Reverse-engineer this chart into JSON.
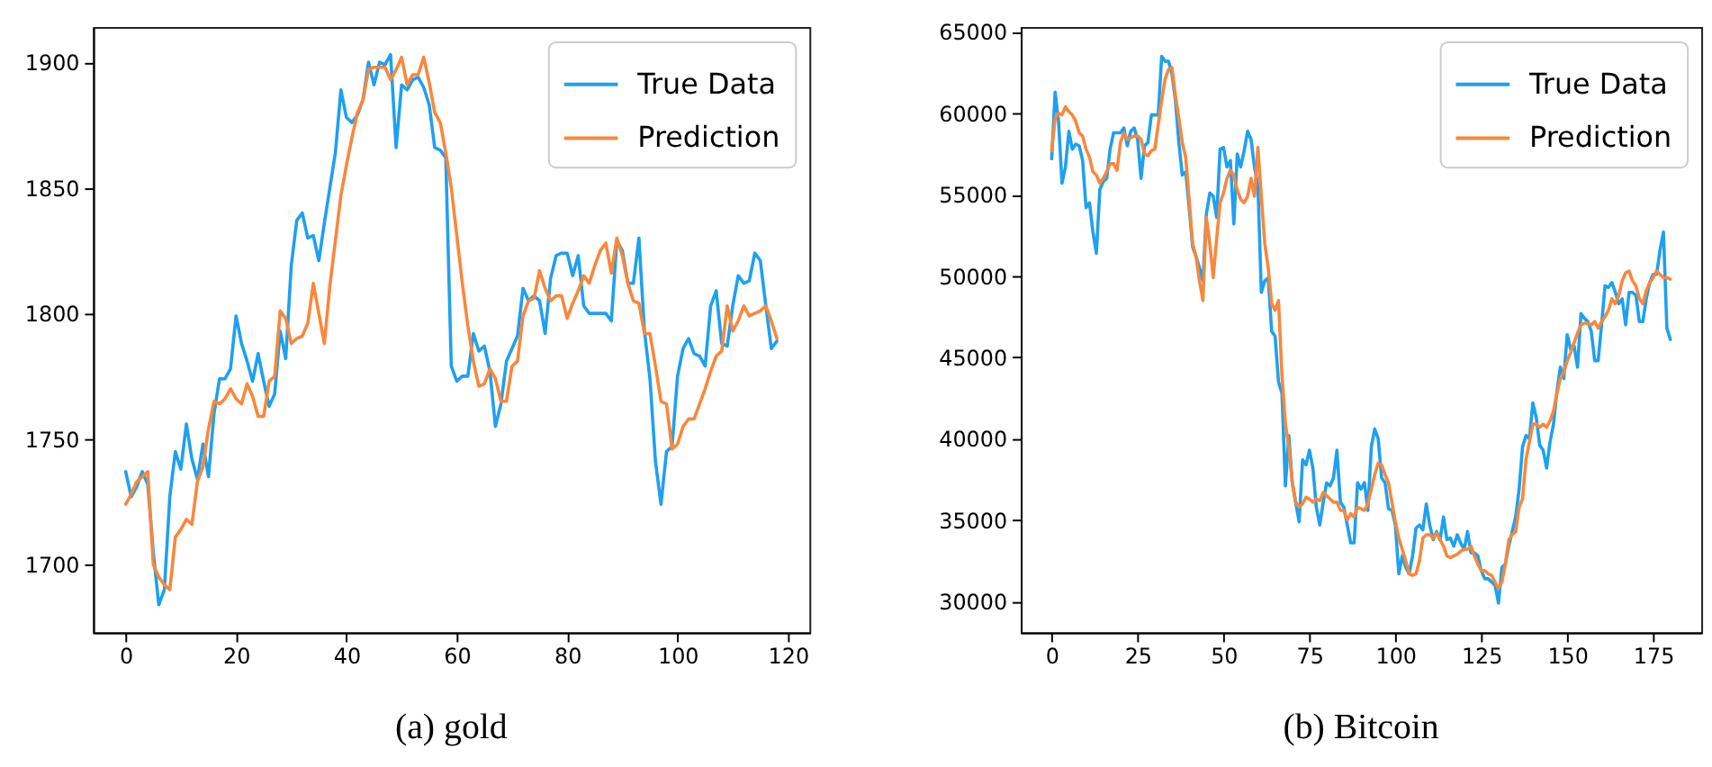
{
  "chart_data": [
    {
      "type": "line",
      "title": "(a) gold",
      "legend": "top right",
      "line_style": "solid",
      "xlim": [
        -5.9,
        123.9
      ],
      "xticks": [
        0,
        20,
        40,
        60,
        80,
        100,
        120
      ],
      "ylim": [
        1673,
        1914
      ],
      "yticks": [
        1700,
        1750,
        1800,
        1850,
        1900
      ],
      "x": [
        0,
        1,
        2,
        3,
        4,
        5,
        6,
        7,
        8,
        9,
        10,
        11,
        12,
        13,
        14,
        15,
        16,
        17,
        18,
        19,
        20,
        21,
        22,
        23,
        24,
        25,
        26,
        27,
        28,
        29,
        30,
        31,
        32,
        33,
        34,
        35,
        36,
        37,
        38,
        39,
        40,
        41,
        42,
        43,
        44,
        45,
        46,
        47,
        48,
        49,
        50,
        51,
        52,
        53,
        54,
        55,
        56,
        57,
        58,
        59,
        60,
        61,
        62,
        63,
        64,
        65,
        66,
        67,
        68,
        69,
        70,
        71,
        72,
        73,
        74,
        75,
        76,
        77,
        78,
        79,
        80,
        81,
        82,
        83,
        84,
        85,
        86,
        87,
        88,
        89,
        90,
        91,
        92,
        93,
        94,
        95,
        96,
        97,
        98,
        99,
        100,
        101,
        102,
        103,
        104,
        105,
        106,
        107,
        108,
        109,
        110,
        111,
        112,
        113,
        114,
        115,
        116,
        117,
        118
      ],
      "series": [
        {
          "name": "True Data",
          "color": "#1ea0f0",
          "values": [
            1737,
            1727,
            1731,
            1737,
            1732,
            1705,
            1684,
            1690,
            1727,
            1745,
            1738,
            1756,
            1742,
            1734,
            1748,
            1735,
            1760,
            1774,
            1774,
            1778,
            1799,
            1788,
            1781,
            1773,
            1784,
            1773,
            1763,
            1768,
            1793,
            1782,
            1819,
            1837,
            1840,
            1830,
            1831,
            1821,
            1836,
            1850,
            1864,
            1889,
            1878,
            1876,
            1879,
            1885,
            1900,
            1891,
            1900,
            1899,
            1903,
            1866,
            1891,
            1889,
            1893,
            1894,
            1890,
            1883,
            1866,
            1865,
            1862,
            1779,
            1773,
            1775,
            1775,
            1792,
            1785,
            1787,
            1777,
            1755,
            1764,
            1781,
            1786,
            1791,
            1810,
            1805,
            1807,
            1805,
            1792,
            1814,
            1823,
            1824,
            1824,
            1815,
            1823,
            1803,
            1800,
            1800,
            1800,
            1800,
            1797,
            1829,
            1825,
            1812,
            1812,
            1830,
            1793,
            1774,
            1741,
            1724,
            1745,
            1747,
            1775,
            1786,
            1790,
            1784,
            1783,
            1779,
            1803,
            1809,
            1788,
            1787,
            1803,
            1815,
            1812,
            1813,
            1824,
            1821,
            1803,
            1786,
            1789
          ]
        },
        {
          "name": "Prediction",
          "color": "#f9873c",
          "values": [
            1724,
            1728,
            1733,
            1735,
            1737,
            1700,
            1695,
            1692,
            1690,
            1711,
            1714,
            1718,
            1716,
            1733,
            1739,
            1754,
            1765,
            1764,
            1766,
            1770,
            1766,
            1764,
            1772,
            1767,
            1759,
            1759,
            1773,
            1775,
            1801,
            1798,
            1788,
            1790,
            1791,
            1796,
            1812,
            1800,
            1788,
            1811,
            1829,
            1847,
            1859,
            1870,
            1880,
            1885,
            1897,
            1898,
            1898,
            1898,
            1893,
            1897,
            1902,
            1891,
            1895,
            1895,
            1902,
            1892,
            1880,
            1876,
            1864,
            1850,
            1831,
            1812,
            1795,
            1781,
            1771,
            1772,
            1778,
            1774,
            1765,
            1765,
            1779,
            1781,
            1799,
            1805,
            1806,
            1817,
            1810,
            1805,
            1807,
            1807,
            1798,
            1804,
            1809,
            1815,
            1812,
            1819,
            1825,
            1828,
            1816,
            1830,
            1823,
            1812,
            1805,
            1804,
            1792,
            1792,
            1779,
            1765,
            1764,
            1746,
            1748,
            1755,
            1758,
            1758,
            1764,
            1770,
            1777,
            1783,
            1785,
            1803,
            1793,
            1797,
            1803,
            1799,
            1800,
            1801,
            1803,
            1797,
            1790
          ]
        }
      ]
    },
    {
      "type": "line",
      "title": "(b) Bitcoin",
      "legend": "top right",
      "line_style": "solid",
      "xlim": [
        -9,
        189
      ],
      "xticks": [
        0,
        25,
        50,
        75,
        100,
        125,
        150,
        175
      ],
      "ylim": [
        28100,
        65300
      ],
      "yticks": [
        30000,
        35000,
        40000,
        45000,
        50000,
        55000,
        60000,
        65000
      ],
      "x": [
        0,
        1,
        2,
        3,
        4,
        5,
        6,
        7,
        8,
        9,
        10,
        11,
        12,
        13,
        14,
        15,
        16,
        17,
        18,
        19,
        20,
        21,
        22,
        23,
        24,
        25,
        26,
        27,
        28,
        29,
        30,
        31,
        32,
        33,
        34,
        35,
        36,
        37,
        38,
        39,
        40,
        41,
        42,
        43,
        44,
        45,
        46,
        47,
        48,
        49,
        50,
        51,
        52,
        53,
        54,
        55,
        56,
        57,
        58,
        59,
        60,
        61,
        62,
        63,
        64,
        65,
        66,
        67,
        68,
        69,
        70,
        71,
        72,
        73,
        74,
        75,
        76,
        77,
        78,
        79,
        80,
        81,
        82,
        83,
        84,
        85,
        86,
        87,
        88,
        89,
        90,
        91,
        92,
        93,
        94,
        95,
        96,
        97,
        98,
        99,
        100,
        101,
        102,
        103,
        104,
        105,
        106,
        107,
        108,
        109,
        110,
        111,
        112,
        113,
        114,
        115,
        116,
        117,
        118,
        119,
        120,
        121,
        122,
        123,
        124,
        125,
        126,
        127,
        128,
        129,
        130,
        131,
        132,
        133,
        134,
        135,
        136,
        137,
        138,
        139,
        140,
        141,
        142,
        143,
        144,
        145,
        146,
        147,
        148,
        149,
        150,
        151,
        152,
        153,
        154,
        155,
        156,
        157,
        158,
        159,
        160,
        161,
        162,
        163,
        164,
        165,
        166,
        167,
        168,
        169,
        170,
        171,
        172,
        173,
        174,
        175,
        176,
        177,
        178,
        179,
        180
      ],
      "series": [
        {
          "name": "True Data",
          "color": "#1ea0f0",
          "values": [
            57200,
            61300,
            59500,
            55700,
            56700,
            58900,
            57800,
            58100,
            58000,
            57100,
            54200,
            54500,
            52700,
            51400,
            55300,
            55800,
            56000,
            57800,
            58800,
            58800,
            58800,
            59100,
            58000,
            58900,
            59100,
            58400,
            56000,
            58000,
            58200,
            59900,
            59900,
            59900,
            63500,
            63200,
            63200,
            62400,
            60800,
            58200,
            56200,
            56400,
            54200,
            51800,
            51200,
            50500,
            49700,
            53800,
            55100,
            54900,
            53600,
            57800,
            57900,
            56700,
            57100,
            53200,
            57500,
            56700,
            57700,
            58900,
            58400,
            56700,
            55600,
            49000,
            49700,
            49900,
            46600,
            46300,
            43500,
            42800,
            37100,
            40200,
            37300,
            36100,
            34900,
            38700,
            38400,
            39300,
            38200,
            35800,
            34700,
            36100,
            37300,
            37100,
            37600,
            39300,
            36100,
            35800,
            34700,
            33600,
            33600,
            37300,
            36900,
            37300,
            35600,
            39500,
            40600,
            40000,
            37600,
            37300,
            35700,
            35600,
            34700,
            31700,
            32800,
            32100,
            31700,
            32800,
            34500,
            34700,
            34400,
            36000,
            34700,
            33800,
            34300,
            33800,
            35200,
            33800,
            33900,
            33400,
            34100,
            33600,
            33200,
            34300,
            33000,
            33000,
            32800,
            31900,
            31400,
            31400,
            31200,
            31000,
            29900,
            32100,
            32300,
            33400,
            34300,
            35200,
            36900,
            39500,
            40200,
            40000,
            42200,
            41300,
            39600,
            39300,
            38200,
            39800,
            40900,
            42900,
            44400,
            43700,
            46400,
            45500,
            45700,
            44400,
            47700,
            47400,
            47200,
            46600,
            44800,
            44800,
            47000,
            49400,
            49300,
            49600,
            49000,
            48300,
            48600,
            47000,
            49000,
            49000,
            48800,
            47200,
            47200,
            48600,
            49600,
            50100,
            50100,
            51600,
            52700,
            46800,
            46100
          ]
        },
        {
          "name": "Prediction",
          "color": "#f9873c",
          "values": [
            57700,
            59700,
            60000,
            59900,
            60400,
            60100,
            59900,
            59500,
            58800,
            58600,
            57800,
            57300,
            56400,
            56200,
            55700,
            56000,
            56400,
            56900,
            56900,
            56500,
            58200,
            58800,
            58400,
            58500,
            58600,
            58600,
            58400,
            57500,
            57400,
            57700,
            57800,
            59300,
            60800,
            62100,
            62700,
            62800,
            61100,
            59700,
            58200,
            57300,
            54700,
            52000,
            51200,
            49700,
            48500,
            53600,
            52000,
            49900,
            52300,
            54500,
            55100,
            56000,
            56500,
            56200,
            55300,
            54700,
            54500,
            54900,
            56000,
            54900,
            57900,
            54900,
            52000,
            50500,
            48300,
            47900,
            48500,
            43900,
            40900,
            39500,
            37300,
            36100,
            35800,
            36000,
            36400,
            36300,
            36100,
            36300,
            36200,
            36700,
            36500,
            36300,
            36100,
            36100,
            35600,
            35600,
            35000,
            35400,
            35200,
            35800,
            35700,
            35600,
            36000,
            36900,
            37800,
            38500,
            38400,
            37800,
            37300,
            36100,
            34900,
            33900,
            33200,
            32500,
            31700,
            31600,
            31700,
            32500,
            33900,
            34100,
            34100,
            33900,
            34200,
            33800,
            33400,
            32800,
            32700,
            32800,
            32900,
            33100,
            33200,
            33200,
            33400,
            32800,
            32300,
            31900,
            31900,
            31700,
            31600,
            31200,
            30800,
            31200,
            32300,
            33800,
            34100,
            34300,
            35800,
            36300,
            38700,
            39800,
            40900,
            40900,
            40700,
            40900,
            40700,
            41100,
            41700,
            42800,
            43700,
            44100,
            44800,
            45300,
            45900,
            46500,
            47000,
            47100,
            47100,
            47000,
            47200,
            46800,
            47200,
            47500,
            47900,
            48600,
            48300,
            48800,
            49700,
            50200,
            50300,
            49700,
            49400,
            48600,
            48300,
            49100,
            49600,
            49900,
            50300,
            50100,
            49900,
            49900,
            49800
          ]
        }
      ]
    }
  ]
}
